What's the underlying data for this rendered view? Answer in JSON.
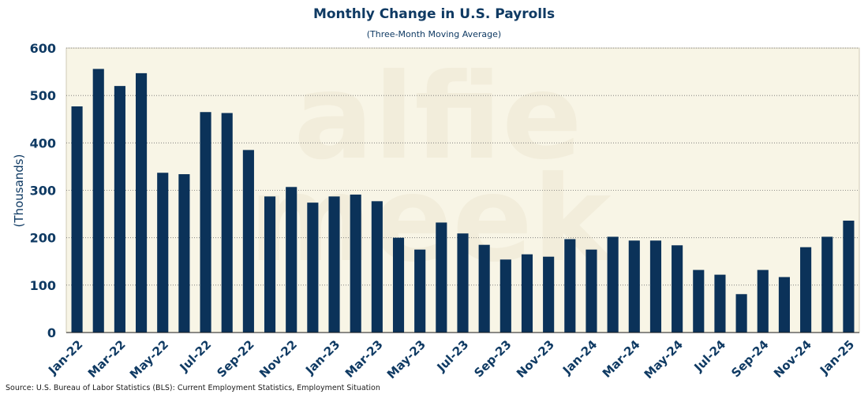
{
  "chart_data": {
    "type": "bar",
    "title": "Monthly Change in U.S. Payrolls",
    "subtitle": "(Three-Month Moving Average)",
    "ylabel": "(Thousands)",
    "xlabel": "",
    "ylim": [
      0,
      600
    ],
    "yticks": [
      0,
      100,
      200,
      300,
      400,
      500,
      600
    ],
    "grid": "horizontal-dotted",
    "categories": [
      "Jan-22",
      "Feb-22",
      "Mar-22",
      "Apr-22",
      "May-22",
      "Jun-22",
      "Jul-22",
      "Aug-22",
      "Sep-22",
      "Oct-22",
      "Nov-22",
      "Dec-22",
      "Jan-23",
      "Feb-23",
      "Mar-23",
      "Apr-23",
      "May-23",
      "Jun-23",
      "Jul-23",
      "Aug-23",
      "Sep-23",
      "Oct-23",
      "Nov-23",
      "Dec-23",
      "Jan-24",
      "Feb-24",
      "Mar-24",
      "Apr-24",
      "May-24",
      "Jun-24",
      "Jul-24",
      "Aug-24",
      "Sep-24",
      "Oct-24",
      "Nov-24",
      "Dec-24",
      "Jan-25"
    ],
    "x_tick_labels": [
      "Jan-22",
      "Mar-22",
      "May-22",
      "Jul-22",
      "Sep-22",
      "Nov-22",
      "Jan-23",
      "Mar-23",
      "May-23",
      "Jul-23",
      "Sep-23",
      "Nov-23",
      "Jan-24",
      "Mar-24",
      "May-24",
      "Jul-24",
      "Sep-24",
      "Nov-24",
      "Jan-25"
    ],
    "values": [
      477,
      556,
      520,
      547,
      337,
      334,
      465,
      463,
      385,
      287,
      307,
      274,
      287,
      291,
      277,
      200,
      175,
      232,
      209,
      185,
      154,
      165,
      160,
      197,
      175,
      202,
      194,
      194,
      184,
      132,
      122,
      81,
      132,
      117,
      180,
      202,
      236
    ],
    "watermark": "alfie meek",
    "source": "Source: U.S. Bureau of Labor Statistics (BLS): Current Employment Statistics, Employment Situation"
  },
  "colors": {
    "bar": "#0b3259",
    "plot_background": "#f8f5e6",
    "text": "#0f3a63",
    "grid": "#6f6f6f"
  }
}
